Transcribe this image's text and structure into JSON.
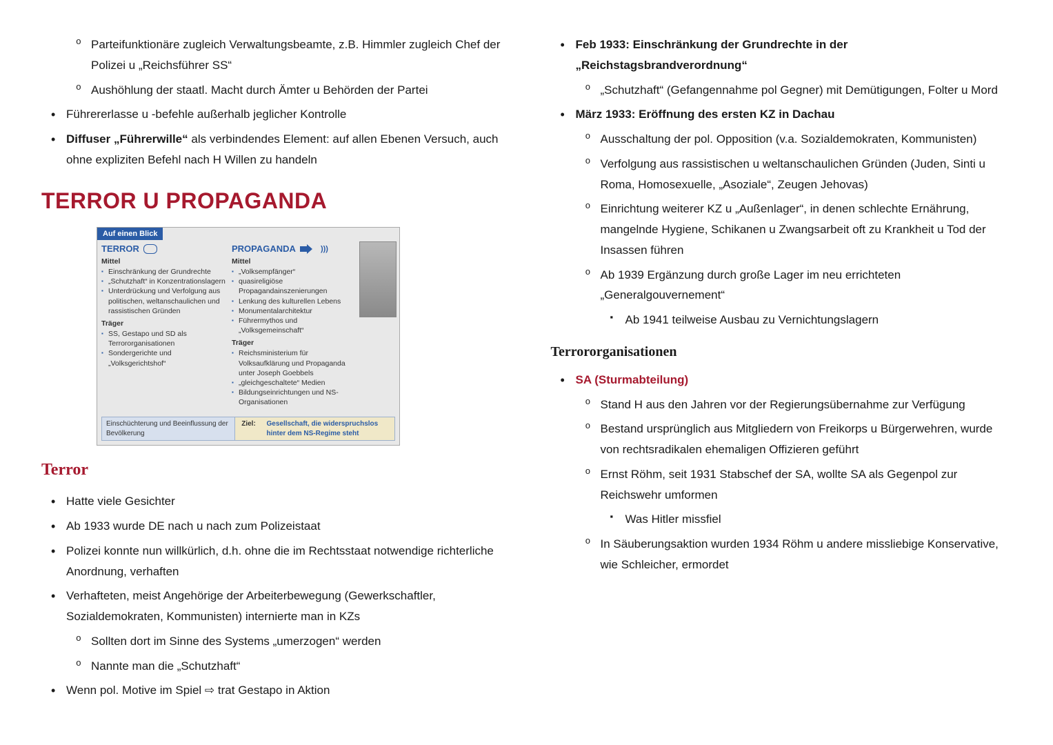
{
  "colors": {
    "accent": "#a6192e",
    "text": "#1a1a1a",
    "info_blue": "#2b5ca6",
    "bg": "#ffffff"
  },
  "left": {
    "top": {
      "i0": "Parteifunktionäre zugleich Verwaltungsbeamte, z.B. Himmler zugleich Chef der Polizei u „Reichsführer SS“",
      "i1": "Aushöhlung der staatl. Macht durch Ämter u Behörden der Partei",
      "i2": "Führererlasse u -befehle außerhalb jeglicher Kontrolle",
      "i3_a": "Diffuser „Führerwille“",
      "i3_b": " als verbindendes Element: auf allen Ebenen Versuch, auch ohne expliziten Befehl nach H Willen zu handeln"
    },
    "h1": "TERROR U PROPAGANDA",
    "infobox": {
      "tab": "Auf einen Blick",
      "terror_title": "TERROR",
      "prop_title": "PROPAGANDA",
      "mittel": "Mittel",
      "traeger": "Träger",
      "terror_mittel": [
        "Einschränkung der Grundrechte",
        "„Schutzhaft“ in Konzentrationslagern",
        "Unterdrückung und Verfolgung aus politischen, weltanschaulichen und rassistischen Gründen"
      ],
      "terror_traeger": [
        "SS, Gestapo und SD als Terrororganisationen",
        "Sondergerichte und „Volksgerichtshof“"
      ],
      "prop_mittel": [
        "„Volksempfänger“",
        "quasireligiöse Propagandainszenierungen",
        "Lenkung des kulturellen Lebens",
        "Monumentalarchitektur",
        "Führermythos und „Volksgemeinschaft“"
      ],
      "prop_traeger": [
        "Reichsministerium für Volksaufklärung und Propaganda unter Joseph Goebbels",
        "„gleichgeschaltete“ Medien",
        "Bildungseinrichtungen und NS-Organisationen"
      ],
      "arrow_left": "Einschüchterung und Beeinflussung der Bevölkerung",
      "goal_label": "Ziel:",
      "goal": "Gesellschaft, die widerspruchslos hinter dem NS-Regime steht"
    },
    "h2": "Terror",
    "terror": {
      "i0": "Hatte viele Gesichter",
      "i1": "Ab 1933 wurde DE nach u nach zum Polizeistaat",
      "i2": "Polizei konnte nun willkürlich, d.h. ohne die im Rechtsstaat notwendige richterliche Anordnung, verhaften",
      "i3": "Verhafteten, meist Angehörige der Arbeiterbewegung (Gewerkschaftler, Sozialdemokraten, Kommunisten) internierte man in KZs",
      "i3a": "Sollten dort im Sinne des Systems „umerzogen“ werden",
      "i3b": "Nannte man die „Schutzhaft“",
      "i4": "Wenn pol. Motive im Spiel ⇨ trat Gestapo in Aktion"
    }
  },
  "right": {
    "r0": "Feb 1933: Einschränkung der Grundrechte in der „Reichstagsbrandverordnung“",
    "r0a": "„Schutzhaft“ (Gefangennahme pol Gegner) mit Demütigungen, Folter u Mord",
    "r1": "März 1933: Eröffnung des ersten KZ in Dachau",
    "r1a": "Ausschaltung der pol. Opposition (v.a. Sozialdemokraten, Kommunisten)",
    "r1b": "Verfolgung aus rassistischen u weltanschaulichen Gründen (Juden, Sinti u Roma, Homosexuelle, „Asoziale“, Zeugen Jehovas)",
    "r1c": "Einrichtung weiterer KZ u „Außenlager“, in denen schlechte Ernährung, mangelnde Hygiene, Schikanen u Zwangsarbeit oft zu Krankheit u Tod der Insassen führen",
    "r1d": "Ab 1939 Ergänzung durch große Lager im neu errichteten „Generalgouvernement“",
    "r1d1": "Ab 1941 teilweise Ausbau zu Vernichtungslagern",
    "h3": "Terrororganisationen",
    "sa_head": "SA (Sturmabteilung)",
    "sa": {
      "a": "Stand H aus den Jahren vor der Regierungsübernahme zur Verfügung",
      "b": "Bestand ursprünglich aus Mitgliedern von Freikorps u Bürgerwehren, wurde von rechtsradikalen ehemaligen Offizieren geführt",
      "c": "Ernst Röhm, seit 1931 Stabschef der SA, wollte SA als Gegenpol zur Reichswehr umformen",
      "c1": "Was Hitler missfiel",
      "d": "In Säuberungsaktion wurden 1934 Röhm u andere missliebige Konservative, wie Schleicher, ermordet"
    }
  }
}
